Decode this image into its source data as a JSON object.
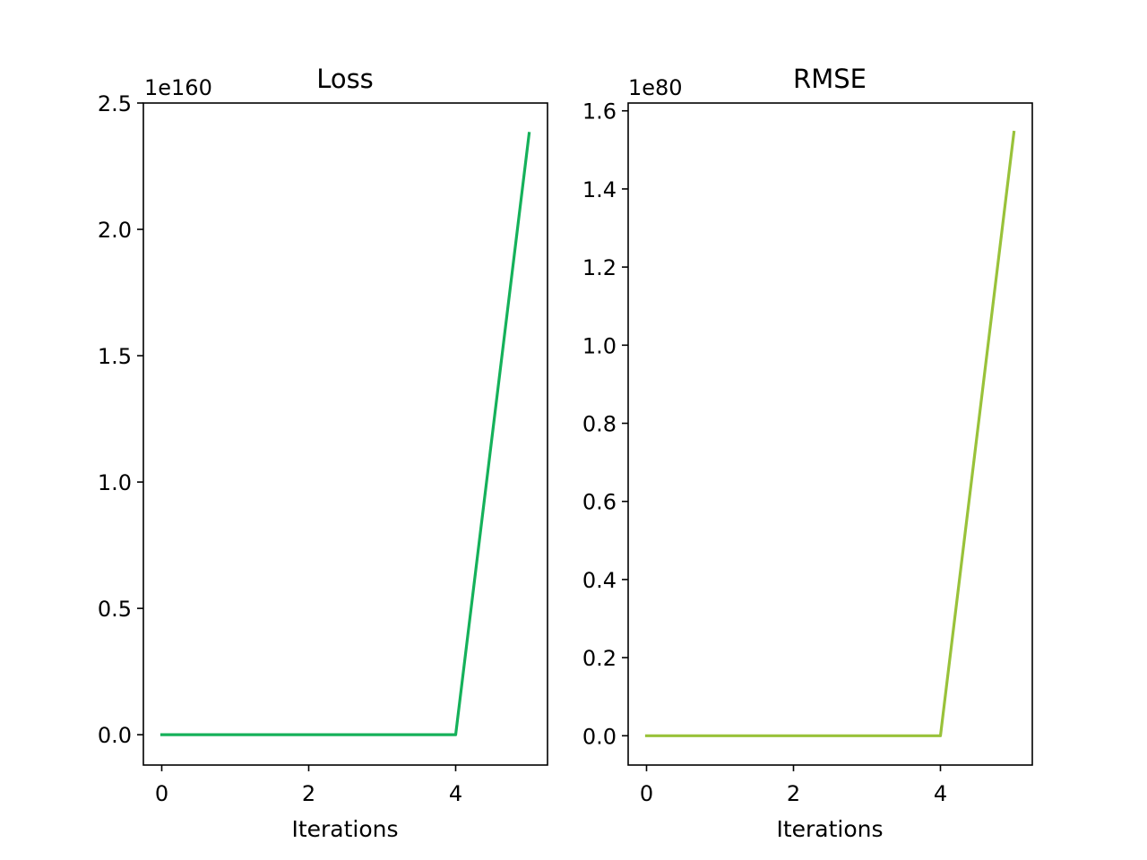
{
  "chart_data": [
    {
      "type": "line",
      "title": "Loss",
      "xlabel": "Iterations",
      "ylabel": "",
      "y_multiplier_label": "1e160",
      "x": [
        0,
        1,
        2,
        3,
        4,
        5
      ],
      "xlim": [
        -0.25,
        5.25
      ],
      "x_ticks": [
        0,
        2,
        4
      ],
      "x_tick_labels": [
        "0",
        "2",
        "4"
      ],
      "ylim": [
        -0.12,
        2.5
      ],
      "y_ticks": [
        0,
        0.5,
        1.0,
        1.5,
        2.0,
        2.5
      ],
      "y_tick_labels": [
        "0.0",
        "0.5",
        "1.0",
        "1.5",
        "2.0",
        "2.5"
      ],
      "grid": false,
      "series": [
        {
          "color": "#15b15a",
          "values": [
            0,
            0,
            0,
            0,
            0,
            2.38
          ]
        }
      ]
    },
    {
      "type": "line",
      "title": "RMSE",
      "xlabel": "Iterations",
      "ylabel": "",
      "y_multiplier_label": "1e80",
      "x": [
        0,
        1,
        2,
        3,
        4,
        5
      ],
      "xlim": [
        -0.25,
        5.25
      ],
      "x_ticks": [
        0,
        2,
        4
      ],
      "x_tick_labels": [
        "0",
        "2",
        "4"
      ],
      "ylim": [
        -0.075,
        1.62
      ],
      "y_ticks": [
        0,
        0.2,
        0.4,
        0.6,
        0.8,
        1.0,
        1.2,
        1.4,
        1.6
      ],
      "y_tick_labels": [
        "0.0",
        "0.2",
        "0.4",
        "0.6",
        "0.8",
        "1.0",
        "1.2",
        "1.4",
        "1.6"
      ],
      "grid": false,
      "series": [
        {
          "color": "#99c23a",
          "values": [
            0,
            0,
            0,
            0,
            0,
            1.545
          ]
        }
      ]
    }
  ]
}
